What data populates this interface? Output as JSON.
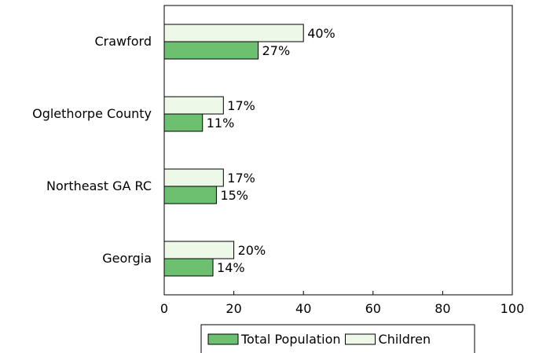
{
  "chart_data": {
    "type": "bar",
    "orientation": "horizontal",
    "categories": [
      "Crawford",
      "Oglethorpe County",
      "Northeast GA RC",
      "Georgia"
    ],
    "series": [
      {
        "name": "Children",
        "values": [
          40,
          17,
          17,
          20
        ],
        "labels": [
          "40%",
          "17%",
          "17%",
          "20%"
        ],
        "color": "#eef8e8"
      },
      {
        "name": "Total Population",
        "values": [
          27,
          11,
          15,
          14
        ],
        "labels": [
          "27%",
          "11%",
          "15%",
          "14%"
        ],
        "color": "#6cc070"
      }
    ],
    "xlim": [
      0,
      100
    ],
    "xticks": [
      0,
      20,
      40,
      60,
      80,
      100
    ],
    "grid": false,
    "legend": {
      "placement": "bottom",
      "entries": [
        {
          "name": "Total Population",
          "color": "#6cc070"
        },
        {
          "name": "Children",
          "color": "#eef8e8"
        }
      ]
    }
  }
}
